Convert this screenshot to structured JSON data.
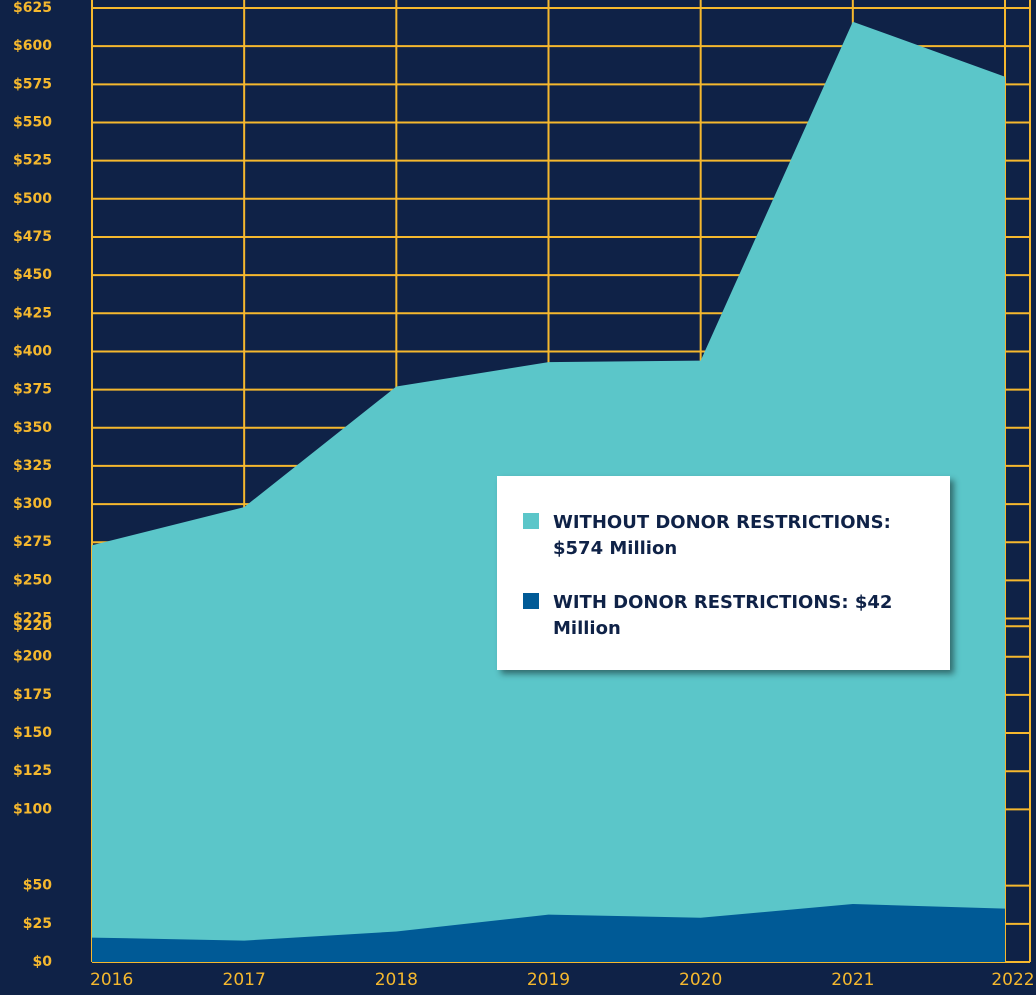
{
  "chart_data": {
    "type": "area",
    "categories": [
      "2016",
      "2017",
      "2018",
      "2019",
      "2020",
      "2021",
      "2022"
    ],
    "series": [
      {
        "name": "WITHOUT DONOR RESTRICTIONS: $574 Million",
        "color": "#5bc6c9",
        "values": [
          273,
          298,
          377,
          393,
          394,
          616,
          580
        ]
      },
      {
        "name": "WITH DONOR RESTRICTIONS:  $42 Million",
        "color": "#005a96",
        "values": [
          16,
          14,
          20,
          31,
          29,
          38,
          35
        ]
      }
    ],
    "ylim": [
      0,
      625
    ],
    "yticks": [
      {
        "value": 625,
        "label": "$625"
      },
      {
        "value": 600,
        "label": "$600"
      },
      {
        "value": 575,
        "label": "$575"
      },
      {
        "value": 550,
        "label": "$550"
      },
      {
        "value": 525,
        "label": "$525"
      },
      {
        "value": 500,
        "label": "$500"
      },
      {
        "value": 475,
        "label": "$475"
      },
      {
        "value": 450,
        "label": "$450"
      },
      {
        "value": 425,
        "label": "$425"
      },
      {
        "value": 400,
        "label": "$400"
      },
      {
        "value": 375,
        "label": "$375"
      },
      {
        "value": 350,
        "label": "$350"
      },
      {
        "value": 325,
        "label": "$325"
      },
      {
        "value": 300,
        "label": "$300"
      },
      {
        "value": 275,
        "label": "$275"
      },
      {
        "value": 250,
        "label": "$250"
      },
      {
        "value": 225,
        "label": "$225"
      },
      {
        "value": 220,
        "label": "$220"
      },
      {
        "value": 200,
        "label": "$200"
      },
      {
        "value": 175,
        "label": "$175"
      },
      {
        "value": 150,
        "label": "$150"
      },
      {
        "value": 125,
        "label": "$125"
      },
      {
        "value": 100,
        "label": "$100"
      },
      {
        "value": 50,
        "label": "$50"
      },
      {
        "value": 25,
        "label": "$25"
      },
      {
        "value": 0,
        "label": "$0"
      }
    ],
    "grid": true,
    "grid_color": "#f5b82e"
  }
}
